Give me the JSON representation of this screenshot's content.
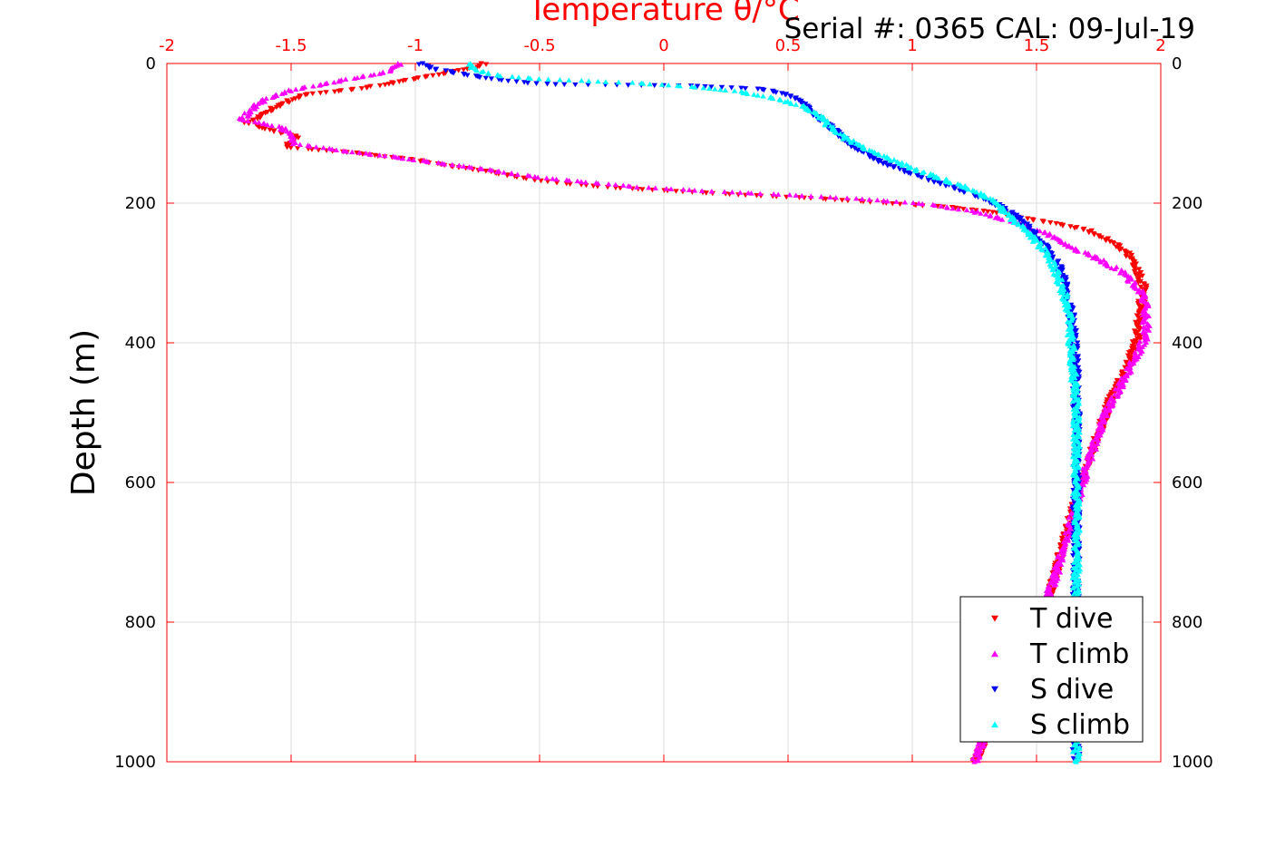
{
  "chart_data": {
    "type": "scatter",
    "title": "Temperature θ/°C",
    "serial_text": "Serial #: 0365  CAL: 09-Jul-19",
    "ylabel": "Depth (m)",
    "xlim": [
      -2,
      2
    ],
    "ylim": [
      0,
      1000
    ],
    "y_reversed": true,
    "grid": true,
    "x_ticks": [
      "-2",
      "-1.5",
      "-1",
      "-0.5",
      "0",
      "0.5",
      "1",
      "1.5",
      "2"
    ],
    "y_ticks": [
      "0",
      "200",
      "400",
      "600",
      "800",
      "1000"
    ],
    "legend_position": "bottom-right",
    "colors": {
      "axis": "#ff0000",
      "grid": "#dddddd"
    },
    "series": [
      {
        "name": "T dive",
        "color": "#ff0000",
        "marker": "triangle-down",
        "points": [
          [
            -0.72,
            0
          ],
          [
            -0.78,
            8
          ],
          [
            -0.9,
            15
          ],
          [
            -1.05,
            25
          ],
          [
            -1.2,
            35
          ],
          [
            -1.45,
            45
          ],
          [
            -1.55,
            60
          ],
          [
            -1.62,
            75
          ],
          [
            -1.68,
            85
          ],
          [
            -1.58,
            95
          ],
          [
            -1.48,
            105
          ],
          [
            -1.52,
            120
          ],
          [
            -1.25,
            128
          ],
          [
            -1.0,
            138
          ],
          [
            -0.85,
            148
          ],
          [
            -0.7,
            155
          ],
          [
            -0.55,
            165
          ],
          [
            -0.4,
            172
          ],
          [
            -0.2,
            178
          ],
          [
            0.05,
            183
          ],
          [
            0.3,
            188
          ],
          [
            0.6,
            193
          ],
          [
            0.9,
            200
          ],
          [
            1.15,
            206
          ],
          [
            1.35,
            214
          ],
          [
            1.55,
            228
          ],
          [
            1.7,
            238
          ],
          [
            1.8,
            255
          ],
          [
            1.86,
            270
          ],
          [
            1.9,
            290
          ],
          [
            1.93,
            320
          ],
          [
            1.92,
            350
          ],
          [
            1.91,
            380
          ],
          [
            1.9,
            400
          ],
          [
            1.86,
            440
          ],
          [
            1.8,
            480
          ],
          [
            1.76,
            520
          ],
          [
            1.72,
            560
          ],
          [
            1.68,
            600
          ],
          [
            1.64,
            650
          ],
          [
            1.6,
            700
          ],
          [
            1.56,
            750
          ],
          [
            1.52,
            800
          ],
          [
            1.46,
            850
          ],
          [
            1.4,
            900
          ],
          [
            1.32,
            950
          ],
          [
            1.25,
            1000
          ]
        ]
      },
      {
        "name": "T climb",
        "color": "#ff00ff",
        "marker": "triangle-up",
        "points": [
          [
            -1.06,
            0
          ],
          [
            -1.1,
            10
          ],
          [
            -1.2,
            18
          ],
          [
            -1.35,
            28
          ],
          [
            -1.5,
            38
          ],
          [
            -1.6,
            50
          ],
          [
            -1.66,
            65
          ],
          [
            -1.7,
            80
          ],
          [
            -1.55,
            90
          ],
          [
            -1.5,
            100
          ],
          [
            -1.48,
            115
          ],
          [
            -1.3,
            125
          ],
          [
            -1.1,
            133
          ],
          [
            -0.9,
            143
          ],
          [
            -0.75,
            150
          ],
          [
            -0.6,
            158
          ],
          [
            -0.45,
            165
          ],
          [
            -0.3,
            170
          ],
          [
            -0.1,
            177
          ],
          [
            0.2,
            183
          ],
          [
            0.5,
            188
          ],
          [
            0.8,
            194
          ],
          [
            1.05,
            201
          ],
          [
            1.25,
            212
          ],
          [
            1.4,
            226
          ],
          [
            1.55,
            245
          ],
          [
            1.65,
            265
          ],
          [
            1.75,
            280
          ],
          [
            1.85,
            300
          ],
          [
            1.93,
            330
          ],
          [
            1.94,
            360
          ],
          [
            1.94,
            390
          ],
          [
            1.9,
            420
          ],
          [
            1.84,
            460
          ],
          [
            1.78,
            500
          ],
          [
            1.74,
            540
          ],
          [
            1.7,
            580
          ],
          [
            1.66,
            630
          ],
          [
            1.62,
            680
          ],
          [
            1.58,
            730
          ],
          [
            1.53,
            780
          ],
          [
            1.46,
            840
          ],
          [
            1.38,
            900
          ],
          [
            1.3,
            950
          ],
          [
            1.25,
            1000
          ]
        ]
      },
      {
        "name": "S dive",
        "color": "#0000ff",
        "marker": "triangle-down",
        "points": [
          [
            -0.98,
            0
          ],
          [
            -0.92,
            8
          ],
          [
            -0.82,
            15
          ],
          [
            -0.7,
            22
          ],
          [
            -0.55,
            28
          ],
          [
            -0.45,
            30
          ],
          [
            0.1,
            32
          ],
          [
            0.4,
            37
          ],
          [
            0.5,
            45
          ],
          [
            0.56,
            55
          ],
          [
            0.6,
            70
          ],
          [
            0.65,
            85
          ],
          [
            0.7,
            100
          ],
          [
            0.75,
            115
          ],
          [
            0.82,
            130
          ],
          [
            0.9,
            145
          ],
          [
            1.0,
            158
          ],
          [
            1.1,
            170
          ],
          [
            1.2,
            182
          ],
          [
            1.3,
            194
          ],
          [
            1.36,
            206
          ],
          [
            1.42,
            220
          ],
          [
            1.48,
            240
          ],
          [
            1.53,
            260
          ],
          [
            1.57,
            280
          ],
          [
            1.6,
            300
          ],
          [
            1.62,
            330
          ],
          [
            1.64,
            360
          ],
          [
            1.65,
            400
          ],
          [
            1.66,
            450
          ],
          [
            1.66,
            500
          ],
          [
            1.66,
            550
          ],
          [
            1.66,
            600
          ],
          [
            1.66,
            700
          ],
          [
            1.66,
            800
          ],
          [
            1.66,
            900
          ],
          [
            1.66,
            1000
          ]
        ]
      },
      {
        "name": "S climb",
        "color": "#00ffff",
        "marker": "triangle-up",
        "points": [
          [
            -0.78,
            0
          ],
          [
            -0.75,
            10
          ],
          [
            -0.65,
            18
          ],
          [
            -0.5,
            22
          ],
          [
            -0.3,
            25
          ],
          [
            -0.1,
            28
          ],
          [
            0.1,
            33
          ],
          [
            0.3,
            40
          ],
          [
            0.45,
            50
          ],
          [
            0.55,
            60
          ],
          [
            0.62,
            72
          ],
          [
            0.66,
            88
          ],
          [
            0.72,
            105
          ],
          [
            0.8,
            120
          ],
          [
            0.9,
            135
          ],
          [
            1.0,
            150
          ],
          [
            1.1,
            163
          ],
          [
            1.2,
            175
          ],
          [
            1.28,
            188
          ],
          [
            1.34,
            200
          ],
          [
            1.38,
            215
          ],
          [
            1.44,
            235
          ],
          [
            1.5,
            255
          ],
          [
            1.55,
            275
          ],
          [
            1.58,
            300
          ],
          [
            1.61,
            330
          ],
          [
            1.63,
            360
          ],
          [
            1.64,
            400
          ],
          [
            1.65,
            450
          ],
          [
            1.66,
            500
          ],
          [
            1.66,
            560
          ],
          [
            1.66,
            620
          ],
          [
            1.66,
            680
          ],
          [
            1.66,
            740
          ],
          [
            1.66,
            800
          ],
          [
            1.66,
            900
          ],
          [
            1.66,
            1000
          ]
        ]
      }
    ]
  }
}
